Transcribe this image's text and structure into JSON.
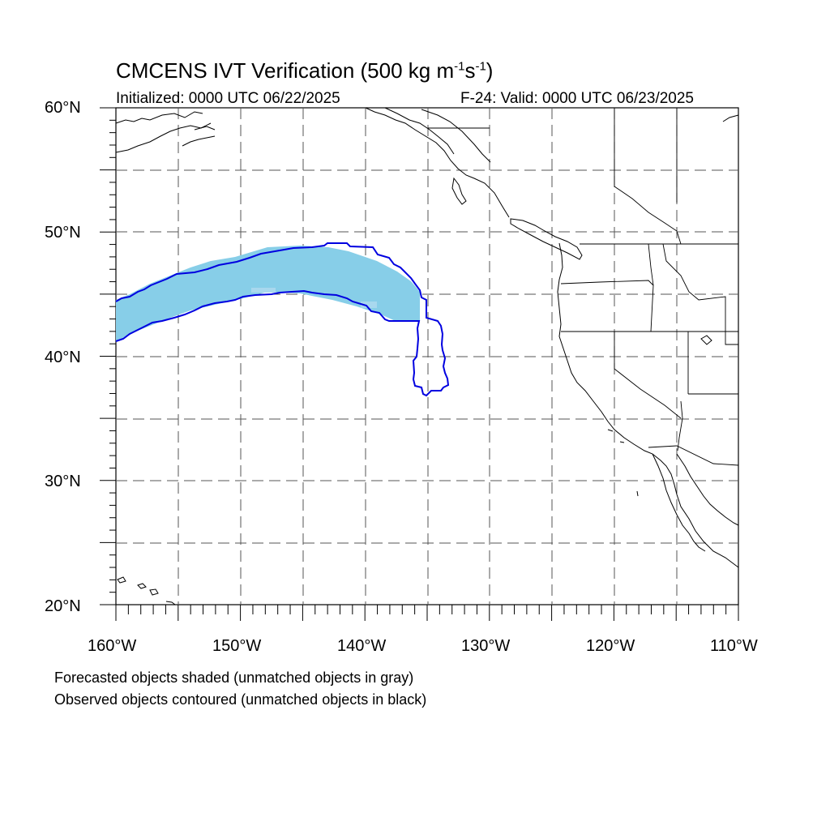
{
  "title": {
    "prefix": "CMCENS IVT Verification (500 kg m",
    "exp1": "-1",
    "mid": "s",
    "exp2": "-1",
    "suffix": ")"
  },
  "initialized": "Initialized: 0000 UTC 06/22/2025",
  "valid": "F-24: Valid: 0000 UTC 06/23/2025",
  "lat_labels": [
    "60°N",
    "50°N",
    "40°N",
    "30°N",
    "20°N"
  ],
  "lon_labels": [
    "160°W",
    "150°W",
    "140°W",
    "130°W",
    "120°W",
    "110°W"
  ],
  "map": {
    "extent": {
      "lon": [
        -160,
        -110
      ],
      "lat": [
        20,
        60
      ]
    },
    "grid_spacing_deg": 5,
    "grid_style": "dashed",
    "colors": {
      "forecast_fill": "#87CEE8",
      "observed_contour": "#0000E0",
      "coastline": "#000000"
    }
  },
  "caption": {
    "line1": "Forecasted objects shaded (unmatched objects in gray)",
    "line2": "Observed objects contoured (unmatched objects in black)"
  }
}
